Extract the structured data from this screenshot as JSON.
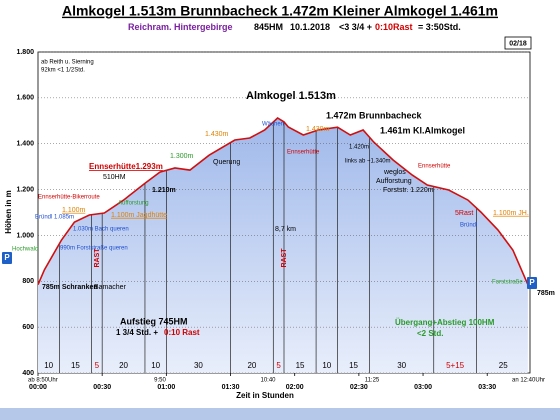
{
  "chart_data": {
    "type": "area",
    "title": "Almkogel 1.513m Brunnbacheck 1.472m Kleiner Almkogel 1.461m",
    "subtitle_parts": [
      {
        "text": "Reichram. Hintergebirge",
        "color": "#7a1fa0"
      },
      {
        "text": "845HM",
        "color": "#000000"
      },
      {
        "text": "10.1.2018",
        "color": "#000000"
      },
      {
        "text": "<3 3/4 +",
        "color": "#000000"
      },
      {
        "text": "0:10Rast",
        "color": "#d00000"
      },
      {
        "text": "= 3:50Std.",
        "color": "#000000"
      }
    ],
    "page_label": "02/18",
    "x_label": "Zeit in Stunden",
    "y_label": "Höhen in m",
    "line_color": "#d01010",
    "x": [
      0,
      3,
      11,
      17,
      24,
      31,
      40,
      50,
      57,
      64,
      71,
      80,
      92,
      99,
      106,
      112,
      115,
      117,
      124,
      131,
      140,
      146,
      152,
      157,
      166,
      175,
      182,
      192,
      201,
      207,
      215,
      222,
      229
    ],
    "values": [
      785,
      850,
      980,
      1058,
      1089,
      1098,
      1154,
      1228,
      1276,
      1294,
      1285,
      1350,
      1416,
      1425,
      1460,
      1512,
      1495,
      1473,
      1438,
      1460,
      1472,
      1438,
      1460,
      1407,
      1329,
      1263,
      1220,
      1198,
      1154,
      1102,
      1024,
      936,
      785
    ],
    "xlim": [
      0,
      230
    ],
    "xticks": [
      {
        "value": 0,
        "label": "00:00"
      },
      {
        "value": 30,
        "label": "00:30"
      },
      {
        "value": 60,
        "label": "01:00"
      },
      {
        "value": 90,
        "label": "01:30"
      },
      {
        "value": 120,
        "label": "02:00"
      },
      {
        "value": 150,
        "label": "02:30"
      },
      {
        "value": 180,
        "label": "03:00"
      },
      {
        "value": 210,
        "label": "03:30"
      }
    ],
    "ylim": [
      400,
      1800
    ],
    "yticks": [
      400,
      600,
      800,
      {
        "value": 1000,
        "label": "1.000"
      },
      {
        "value": 1200,
        "label": "1.200"
      },
      {
        "value": 1400,
        "label": "1.400"
      },
      {
        "value": 1600,
        "label": "1.600"
      },
      {
        "value": 1800,
        "label": "1.800"
      }
    ],
    "grid": true,
    "segment_color": "#000000",
    "segments": [
      {
        "minutes": 10
      },
      {
        "minutes": 15
      },
      {
        "minutes": 5,
        "color": "#d00000"
      },
      {
        "minutes": 20
      },
      {
        "minutes": 10
      },
      {
        "minutes": 30
      },
      {
        "minutes": 20
      },
      {
        "minutes": 5,
        "color": "#d00000"
      },
      {
        "minutes": 15
      },
      {
        "minutes": 10
      },
      {
        "minutes": 15
      },
      {
        "minutes": 30
      },
      {
        "minutes": 20,
        "label": "5+15",
        "color": "#d00000"
      },
      {
        "minutes": 25
      }
    ],
    "annotations": [
      {
        "text": "ab Reith u. Sierning",
        "color": "#000000"
      },
      {
        "text": "92km <1 1/2Std.",
        "color": "#000000"
      },
      {
        "text": "Almkogel 1.513m",
        "color": "#000000"
      },
      {
        "text": "1.472m Brunnbacheck",
        "color": "#000000"
      },
      {
        "text": "1.461m Kl.Almkogel",
        "color": "#000000"
      },
      {
        "text": "Wächen",
        "color": "#1f4fd0"
      },
      {
        "text": "1.430m",
        "color": "#e08000"
      },
      {
        "text": "1.430m",
        "color": "#e08000"
      },
      {
        "text": "Ennserhütte",
        "color": "#d00000"
      },
      {
        "text": "1.420m",
        "color": "#000000"
      },
      {
        "text": "links ab ~1.340m",
        "color": "#000000"
      },
      {
        "text": "Ennserhütte",
        "color": "#d00000"
      },
      {
        "text": "weglos",
        "color": "#000000"
      },
      {
        "text": "Aufforstung",
        "color": "#000000"
      },
      {
        "text": "Forststr. 1.220m",
        "color": "#000000"
      },
      {
        "text": "1.300m",
        "color": "#2a9a2a"
      },
      {
        "text": "Querung",
        "color": "#000000"
      },
      {
        "text": "Ennserhütte1.293m",
        "color": "#d00000"
      },
      {
        "text": "510HM",
        "color": "#000000"
      },
      {
        "text": "1.210m",
        "color": "#000000"
      },
      {
        "text": "Aufforstung",
        "color": "#2a9a2a"
      },
      {
        "text": "Ennserhütte-Bikerroute",
        "color": "#d00000"
      },
      {
        "text": "1.100m",
        "color": "#e08000"
      },
      {
        "text": "Bründl 1.085m",
        "color": "#1f4fd0"
      },
      {
        "text": "1.100m Jagdhütte",
        "color": "#e08000"
      },
      {
        "text": "1.030m Bach queren",
        "color": "#1f4fd0"
      },
      {
        "text": "Hochwald",
        "color": "#2a9a2a"
      },
      {
        "text": "990m Forststraße queren",
        "color": "#1f4fd0"
      },
      {
        "text": "8,7 km",
        "color": "#000000"
      },
      {
        "text": "RAST",
        "color": "#d00000"
      },
      {
        "text": "RAST",
        "color": "#d00000"
      },
      {
        "text": "785m Schranken",
        "color": "#000000"
      },
      {
        "text": "Bamacher",
        "color": "#000000"
      },
      {
        "text": "Aufstieg 745HM",
        "color": "#000000"
      },
      {
        "text": "1 3/4 Std. +",
        "color": "#000000"
      },
      {
        "text": "0:10 Rast",
        "color": "#d00000"
      },
      {
        "text": "Übergang+Abstieg 100HM",
        "color": "#2a9a2a"
      },
      {
        "text": "<2 Std.",
        "color": "#2a9a2a"
      },
      {
        "text": "5Rast",
        "color": "#d00000"
      },
      {
        "text": "Bründl",
        "color": "#1f4fd0"
      },
      {
        "text": "1.100m JH.",
        "color": "#e08000"
      },
      {
        "text": "Forststraße",
        "color": "#2a9a2a"
      },
      {
        "text": "785m",
        "color": "#000000"
      },
      {
        "text": "P",
        "color": "#ffffff"
      },
      {
        "text": "P",
        "color": "#ffffff"
      },
      {
        "text": "ab 8:50Uhr",
        "color": "#000000"
      },
      {
        "text": "9:50",
        "color": "#000000"
      },
      {
        "text": "10:40",
        "color": "#000000"
      },
      {
        "text": "11:25",
        "color": "#000000"
      },
      {
        "text": "an 12:40Uhr",
        "color": "#000000"
      }
    ]
  }
}
